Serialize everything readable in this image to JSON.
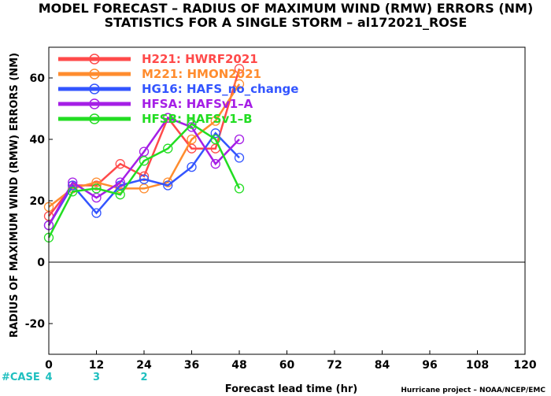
{
  "chart_data": {
    "type": "line",
    "title": "MODEL FORECAST – RADIUS OF MAXIMUM WIND (RMW) ERRORS (NM)",
    "subtitle": "STATISTICS FOR A SINGLE STORM – al172021_ROSE",
    "xlabel": "Forecast lead time (hr)",
    "ylabel": "RADIUS OF MAXIMUM WIND (RMW) ERRORS (NM)",
    "xlim": [
      0,
      120
    ],
    "ylim": [
      -30,
      70
    ],
    "xticks": [
      0,
      12,
      24,
      36,
      48,
      60,
      72,
      84,
      96,
      108,
      120
    ],
    "yticks": [
      -20,
      0,
      20,
      40,
      60
    ],
    "zero_line": true,
    "legend_placement": "top-left",
    "case_label": "#CASE",
    "case_counts": [
      {
        "x": 0,
        "label": "4"
      },
      {
        "x": 12,
        "label": "3"
      },
      {
        "x": 24,
        "label": "2"
      }
    ],
    "credit": "Hurricane project – NOAA/NCEP/EMC",
    "series": [
      {
        "name": "H221:  HWRF2021",
        "color": "#ff4a4a",
        "x": [
          0,
          6,
          12,
          18,
          24,
          30,
          36,
          42,
          48
        ],
        "y": [
          15,
          25,
          25,
          32,
          28,
          47,
          37,
          37,
          63
        ]
      },
      {
        "name": "M221:  HMON2021",
        "color": "#ff8c2e",
        "x": [
          0,
          6,
          12,
          18,
          24,
          30,
          36,
          42,
          48
        ],
        "y": [
          18,
          24,
          26,
          24,
          24,
          26,
          40,
          46,
          58
        ]
      },
      {
        "name": "HG16:  HAFS_no_change",
        "color": "#3355ff",
        "x": [
          0,
          6,
          12,
          18,
          24,
          30,
          36,
          42,
          48
        ],
        "y": [
          12,
          25,
          16,
          25,
          27,
          25,
          31,
          42,
          34
        ]
      },
      {
        "name": "HFSA:  HAFSv1–A",
        "color": "#a51ee6",
        "x": [
          0,
          6,
          12,
          18,
          24,
          30,
          36,
          42,
          48
        ],
        "y": [
          12,
          26,
          21,
          26,
          36,
          47,
          44,
          32,
          40
        ]
      },
      {
        "name": "HFSB:  HAFSv1–B",
        "color": "#22dd22",
        "x": [
          0,
          6,
          12,
          18,
          24,
          30,
          36,
          42,
          48
        ],
        "y": [
          8,
          23,
          24,
          22,
          33,
          37,
          45,
          40,
          24
        ]
      }
    ]
  }
}
